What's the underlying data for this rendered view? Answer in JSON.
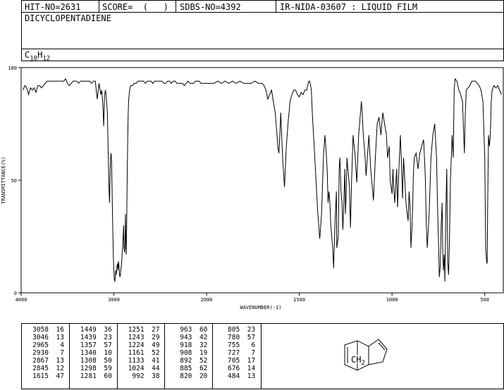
{
  "header": {
    "hit_no": "HIT-NO=2631",
    "score": "SCORE=  (   )",
    "sdbs_no": "SDBS-NO=4392",
    "ir_id": "IR-NIDA-03607 : LIQUID FILM",
    "compound": "DICYCLOPENTADIENE",
    "formula_c": "C",
    "formula_c_sub": "10",
    "formula_h": "H",
    "formula_h_sub": "12"
  },
  "chart_data": {
    "type": "line",
    "xlabel": "WAVENUMBER(-1)",
    "ylabel": "TRANSMITTANCE(%)",
    "xlim": [
      4000,
      400
    ],
    "ylim": [
      0,
      100
    ],
    "x_ticks": [
      4000,
      3000,
      2000,
      1500,
      1000,
      500
    ],
    "y_ticks": [
      0,
      50,
      100
    ],
    "series": [
      {
        "x": [
          3980,
          3960,
          3940,
          3920,
          3900,
          3880,
          3860,
          3840,
          3820,
          3800,
          3780,
          3760,
          3740,
          3720,
          3700,
          3680,
          3660,
          3640,
          3620,
          3600,
          3580,
          3560,
          3540,
          3520,
          3500,
          3480,
          3460,
          3440,
          3420,
          3400,
          3380,
          3360,
          3340,
          3320,
          3300,
          3280,
          3260,
          3240,
          3220,
          3200,
          3180,
          3160,
          3140,
          3130,
          3120,
          3110,
          3100,
          3090,
          3080,
          3070,
          3065,
          3058,
          3052,
          3046,
          3040,
          3035,
          3030,
          3025,
          3020,
          3015,
          3010,
          3005,
          3000,
          2995,
          2990,
          2985,
          2980,
          2975,
          2970,
          2965,
          2960,
          2955,
          2950,
          2945,
          2940,
          2935,
          2930,
          2925,
          2920,
          2915,
          2910,
          2905,
          2900,
          2895,
          2890,
          2885,
          2880,
          2875,
          2870,
          2867,
          2862,
          2858,
          2855,
          2850,
          2845,
          2840,
          2830,
          2820,
          2800,
          2780,
          2760,
          2740,
          2720,
          2700,
          2680,
          2660,
          2640,
          2620,
          2600,
          2580,
          2560,
          2540,
          2520,
          2500,
          2480,
          2460,
          2440,
          2420,
          2400,
          2380,
          2360,
          2340,
          2320,
          2300,
          2280,
          2260,
          2240,
          2220,
          2200,
          2180,
          2160,
          2140,
          2120,
          2100,
          2080,
          2060,
          2040,
          2020,
          2000,
          1980,
          1960,
          1940,
          1920,
          1900,
          1880,
          1860,
          1840,
          1820,
          1800,
          1780,
          1760,
          1740,
          1720,
          1700,
          1690,
          1680,
          1670,
          1660,
          1650,
          1640,
          1630,
          1625,
          1620,
          1615,
          1610,
          1605,
          1600,
          1590,
          1580,
          1570,
          1560,
          1550,
          1540,
          1530,
          1520,
          1510,
          1500,
          1490,
          1480,
          1470,
          1460,
          1455,
          1449,
          1445,
          1439,
          1435,
          1430,
          1420,
          1410,
          1400,
          1390,
          1380,
          1370,
          1362,
          1357,
          1350,
          1345,
          1340,
          1335,
          1330,
          1320,
          1315,
          1308,
          1300,
          1298,
          1290,
          1285,
          1281,
          1275,
          1270,
          1265,
          1260,
          1255,
          1251,
          1247,
          1243,
          1238,
          1230,
          1224,
          1218,
          1210,
          1200,
          1190,
          1180,
          1170,
          1165,
          1161,
          1155,
          1145,
          1140,
          1133,
          1125,
          1115,
          1100,
          1090,
          1080,
          1070,
          1060,
          1050,
          1040,
          1030,
          1024,
          1015,
          1010,
          1000,
          995,
          992,
          985,
          975,
          970,
          963,
          955,
          948,
          943,
          938,
          930,
          925,
          918,
          913,
          908,
          903,
          898,
          892,
          888,
          885,
          880,
          870,
          860,
          850,
          840,
          830,
          825,
          820,
          815,
          810,
          800,
          790,
          780,
          770,
          760,
          755,
          750,
          745,
          740,
          735,
          730,
          727,
          723,
          718,
          715,
          710,
          705,
          700,
          695,
          690,
          685,
          676,
          670,
          665,
          660,
          650,
          640,
          630,
          620,
          610,
          605,
          600,
          590,
          580,
          570,
          560,
          550,
          540,
          530,
          520,
          510,
          500,
          495,
          490,
          487,
          484,
          480,
          475,
          470,
          465,
          460,
          450,
          440,
          430,
          420,
          410
        ],
        "y": [
          90,
          92,
          91,
          88,
          91,
          90,
          91,
          89,
          92,
          92,
          91,
          92,
          93,
          94,
          94,
          94,
          94,
          94,
          94,
          94,
          94,
          94,
          94,
          95,
          93,
          92,
          93,
          94,
          94,
          94,
          93,
          94,
          94,
          94,
          94,
          94,
          94,
          93,
          94,
          94,
          86,
          93,
          88,
          90,
          84,
          74,
          88,
          90,
          86,
          80,
          70,
          56,
          45,
          40,
          55,
          60,
          62,
          58,
          48,
          35,
          25,
          15,
          10,
          6,
          5,
          7,
          10,
          8,
          10,
          12,
          13,
          10,
          14,
          12,
          9,
          7,
          8,
          10,
          12,
          14,
          18,
          20,
          25,
          30,
          20,
          18,
          22,
          35,
          20,
          17,
          30,
          45,
          55,
          70,
          80,
          86,
          90,
          92,
          92,
          93,
          93,
          94,
          94,
          94,
          94,
          93,
          94,
          94,
          94,
          93,
          94,
          94,
          94,
          94,
          94,
          93,
          93,
          94,
          94,
          93,
          94,
          94,
          93,
          93,
          93,
          93,
          92,
          93,
          94,
          93,
          93,
          93,
          94,
          94,
          94,
          93,
          93,
          93,
          93,
          93,
          93,
          94,
          93,
          94,
          93,
          94,
          93,
          94,
          93,
          93,
          93,
          94,
          93,
          93,
          92,
          90,
          86,
          88,
          90,
          85,
          80,
          75,
          70,
          64,
          62,
          70,
          80,
          60,
          47,
          65,
          76,
          85,
          88,
          90,
          90,
          88,
          87,
          89,
          88,
          90,
          90,
          92,
          94,
          94,
          92,
          90,
          80,
          65,
          50,
          35,
          24,
          35,
          60,
          70,
          65,
          55,
          40,
          45,
          40,
          30,
          20,
          11,
          30,
          45,
          20,
          25,
          55,
          60,
          45,
          40,
          28,
          40,
          55,
          35,
          45,
          60,
          55,
          48,
          29,
          50,
          70,
          62,
          49,
          70,
          80,
          85,
          80,
          70,
          60,
          52,
          60,
          70,
          55,
          41,
          60,
          75,
          78,
          70,
          80,
          75,
          70,
          60,
          65,
          50,
          44,
          55,
          48,
          40,
          55,
          38,
          55,
          70,
          55,
          42,
          60,
          48,
          40,
          35,
          32,
          45,
          38,
          20,
          30,
          40,
          52,
          60,
          62,
          55,
          62,
          65,
          68,
          60,
          50,
          30,
          20,
          35,
          60,
          70,
          75,
          60,
          40,
          25,
          7,
          12,
          30,
          40,
          20,
          10,
          17,
          5,
          35,
          55,
          14,
          8,
          25,
          50,
          70,
          60,
          90,
          95,
          94,
          90,
          88,
          85,
          62,
          80,
          90,
          91,
          92,
          94,
          94,
          94,
          93,
          92,
          90,
          85,
          60,
          20,
          14,
          13,
          40,
          70,
          65,
          70,
          85,
          90,
          92,
          91,
          92,
          90,
          88
        ]
      }
    ]
  },
  "peak_table": [
    [
      [
        "3058",
        "16"
      ],
      [
        "3046",
        "13"
      ],
      [
        "2965",
        "4"
      ],
      [
        "2930",
        "7"
      ],
      [
        "2867",
        "13"
      ],
      [
        "2845",
        "12"
      ],
      [
        "1615",
        "47"
      ]
    ],
    [
      [
        "1449",
        "36"
      ],
      [
        "1439",
        "23"
      ],
      [
        "1357",
        "57"
      ],
      [
        "1340",
        "10"
      ],
      [
        "1308",
        "50"
      ],
      [
        "1298",
        "59"
      ],
      [
        "1281",
        "60"
      ]
    ],
    [
      [
        "1251",
        "27"
      ],
      [
        "1243",
        "29"
      ],
      [
        "1224",
        "49"
      ],
      [
        "1161",
        "52"
      ],
      [
        "1133",
        "41"
      ],
      [
        "1024",
        "44"
      ],
      [
        "992",
        "38"
      ]
    ],
    [
      [
        "963",
        "60"
      ],
      [
        "943",
        "42"
      ],
      [
        "918",
        "32"
      ],
      [
        "908",
        "19"
      ],
      [
        "892",
        "52"
      ],
      [
        "885",
        "62"
      ],
      [
        "820",
        "20"
      ]
    ],
    [
      [
        "805",
        "23"
      ],
      [
        "780",
        "57"
      ],
      [
        "755",
        "6"
      ],
      [
        "727",
        "7"
      ],
      [
        "705",
        "17"
      ],
      [
        "676",
        "14"
      ],
      [
        "484",
        "13"
      ]
    ]
  ],
  "structure": {
    "group_label": "CH",
    "group_sub": "2"
  }
}
